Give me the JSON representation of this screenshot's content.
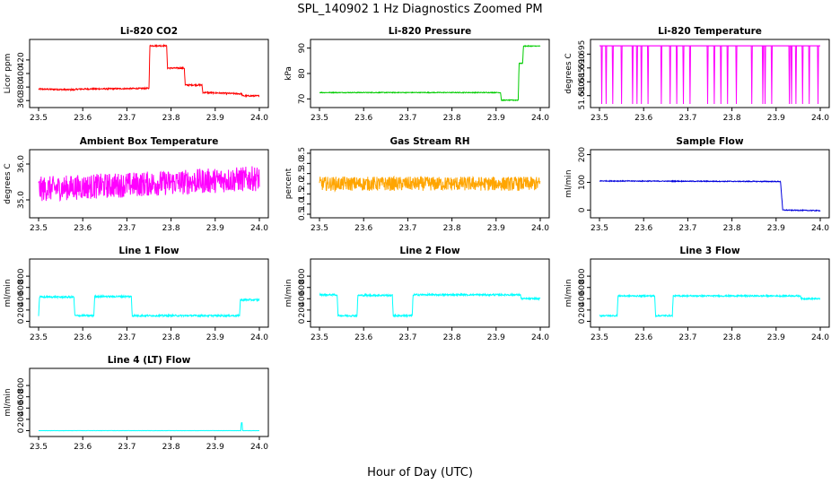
{
  "figure": {
    "title": "SPL_140902  1 Hz Diagnostics Zoomed PM",
    "xlabel": "Hour of Day (UTC)"
  },
  "chart_data": [
    {
      "type": "line",
      "title": "Li-820 CO2",
      "xlabel": "",
      "ylabel": "Licor ppm",
      "color": "#ff0000",
      "xlim": [
        23.5,
        24.0
      ],
      "ylim": [
        355,
        445
      ],
      "xticks": [
        "23.5",
        "23.6",
        "23.7",
        "23.8",
        "23.9",
        "24.0"
      ],
      "yticks": [
        "360",
        "380",
        "400",
        "420"
      ],
      "x": [
        23.5,
        23.58,
        23.59,
        23.75,
        23.752,
        23.79,
        23.792,
        23.83,
        23.832,
        23.87,
        23.872,
        23.96,
        23.962,
        24.0
      ],
      "y": [
        377,
        376,
        377,
        378,
        441,
        441,
        408,
        408,
        383,
        383,
        372,
        370,
        367,
        367
      ],
      "noise": 1.0
    },
    {
      "type": "line",
      "title": "Li-820 Pressure",
      "xlabel": "",
      "ylabel": "kPa",
      "color": "#00cc00",
      "xlim": [
        23.5,
        24.0
      ],
      "ylim": [
        68,
        92
      ],
      "xticks": [
        "23.5",
        "23.6",
        "23.7",
        "23.8",
        "23.9",
        "24.0"
      ],
      "yticks": [
        "70",
        "80",
        "90"
      ],
      "x": [
        23.5,
        23.91,
        23.912,
        23.95,
        23.952,
        23.96,
        23.962,
        24.0
      ],
      "y": [
        72.5,
        72.5,
        69.5,
        69.5,
        84,
        84,
        90.8,
        90.8
      ],
      "noise": 0.15
    },
    {
      "type": "line",
      "title": "Li-820 Temperature",
      "xlabel": "",
      "ylabel": "degrees C",
      "color": "#ff00ff",
      "xlim": [
        23.5,
        24.0
      ],
      "ylim": [
        51.677,
        51.699
      ],
      "xticks": [
        "23.5",
        "23.6",
        "23.7",
        "23.8",
        "23.9",
        "24.0"
      ],
      "yticks": [
        "51.680",
        "51.685",
        "51.690",
        "51.695"
      ],
      "baseline": 51.698,
      "low": 51.677,
      "spikes": [
        23.505,
        23.515,
        23.53,
        23.55,
        23.575,
        23.585,
        23.595,
        23.61,
        23.64,
        23.66,
        23.675,
        23.69,
        23.705,
        23.745,
        23.76,
        23.775,
        23.79,
        23.81,
        23.845,
        23.87,
        23.875,
        23.89,
        23.93,
        23.935,
        23.945,
        23.96,
        23.975,
        23.995
      ]
    },
    {
      "type": "line",
      "title": "Ambient Box Temperature",
      "xlabel": "",
      "ylabel": "degrees C",
      "color": "#ff00ff",
      "xlim": [
        23.5,
        24.0
      ],
      "ylim": [
        34.6,
        36.3
      ],
      "xticks": [
        "23.5",
        "23.6",
        "23.7",
        "23.8",
        "23.9",
        "24.0"
      ],
      "yticks": [
        "35.0",
        "36.0"
      ],
      "x": [
        23.5,
        23.75,
        24.0
      ],
      "y": [
        35.3,
        35.45,
        35.6
      ],
      "noise": 0.35
    },
    {
      "type": "line",
      "title": "Gas Stream RH",
      "xlabel": "",
      "ylabel": "percent",
      "color": "#ffa500",
      "xlim": [
        23.5,
        24.0
      ],
      "ylim": [
        0.5,
        3.5
      ],
      "xticks": [
        "23.5",
        "23.6",
        "23.7",
        "23.8",
        "23.9",
        "24.0"
      ],
      "yticks": [
        "0.5",
        "1.0",
        "1.5",
        "2.0",
        "2.5",
        "3.0",
        "3.5"
      ],
      "x": [
        23.5,
        24.0
      ],
      "y": [
        2.0,
        2.0
      ],
      "noise": 0.35
    },
    {
      "type": "line",
      "title": "Sample Flow",
      "xlabel": "",
      "ylabel": "ml/min",
      "color": "#0000dd",
      "xlim": [
        23.5,
        24.0
      ],
      "ylim": [
        -15,
        205
      ],
      "xticks": [
        "23.5",
        "23.6",
        "23.7",
        "23.8",
        "23.9",
        "24.0"
      ],
      "yticks": [
        "0",
        "100",
        "200"
      ],
      "x": [
        23.5,
        23.91,
        23.915,
        24.0
      ],
      "y": [
        105,
        103,
        0,
        -2
      ],
      "noise": 1.5
    },
    {
      "type": "line",
      "title": "Line 1 Flow",
      "xlabel": "",
      "ylabel": "ml/min",
      "color": "#00ffff",
      "xlim": [
        23.5,
        24.0
      ],
      "ylim": [
        -40,
        1040
      ],
      "xticks": [
        "23.5",
        "23.6",
        "23.7",
        "23.8",
        "23.9",
        "24.0"
      ],
      "yticks": [
        "0",
        "200",
        "400",
        "600",
        "800"
      ],
      "x": [
        23.5,
        23.502,
        23.58,
        23.582,
        23.625,
        23.627,
        23.71,
        23.712,
        23.955,
        23.957,
        24.0
      ],
      "y": [
        100,
        430,
        430,
        100,
        100,
        440,
        440,
        100,
        100,
        380,
        380
      ],
      "noise": 15
    },
    {
      "type": "line",
      "title": "Line 2 Flow",
      "xlabel": "",
      "ylabel": "ml/min",
      "color": "#00ffff",
      "xlim": [
        23.5,
        24.0
      ],
      "ylim": [
        -40,
        1040
      ],
      "xticks": [
        "23.5",
        "23.6",
        "23.7",
        "23.8",
        "23.9",
        "24.0"
      ],
      "yticks": [
        "0",
        "200",
        "400",
        "600",
        "800"
      ],
      "x": [
        23.5,
        23.54,
        23.542,
        23.585,
        23.587,
        23.665,
        23.667,
        23.71,
        23.712,
        23.955,
        23.957,
        24.0
      ],
      "y": [
        470,
        470,
        100,
        100,
        460,
        460,
        100,
        100,
        470,
        470,
        400,
        400
      ],
      "noise": 15
    },
    {
      "type": "line",
      "title": "Line 3 Flow",
      "xlabel": "",
      "ylabel": "ml/min",
      "color": "#00ffff",
      "xlim": [
        23.5,
        24.0
      ],
      "ylim": [
        -40,
        1040
      ],
      "xticks": [
        "23.5",
        "23.6",
        "23.7",
        "23.8",
        "23.9",
        "24.0"
      ],
      "yticks": [
        "0",
        "200",
        "400",
        "600",
        "800"
      ],
      "x": [
        23.5,
        23.502,
        23.54,
        23.542,
        23.625,
        23.627,
        23.665,
        23.667,
        23.955,
        23.957,
        24.0
      ],
      "y": [
        100,
        100,
        100,
        450,
        450,
        100,
        100,
        450,
        450,
        400,
        400
      ],
      "noise": 12
    },
    {
      "type": "line",
      "title": "Line 4 (LT) Flow",
      "xlabel": "",
      "ylabel": "ml/min",
      "color": "#00ffff",
      "xlim": [
        23.5,
        24.0
      ],
      "ylim": [
        -40,
        1040
      ],
      "xticks": [
        "23.5",
        "23.6",
        "23.7",
        "23.8",
        "23.9",
        "24.0"
      ],
      "yticks": [
        "0",
        "200",
        "400",
        "600",
        "800"
      ],
      "x": [
        23.5,
        23.958,
        23.959,
        23.961,
        23.962,
        24.0
      ],
      "y": [
        0,
        0,
        140,
        140,
        0,
        0
      ],
      "noise": 2
    }
  ]
}
